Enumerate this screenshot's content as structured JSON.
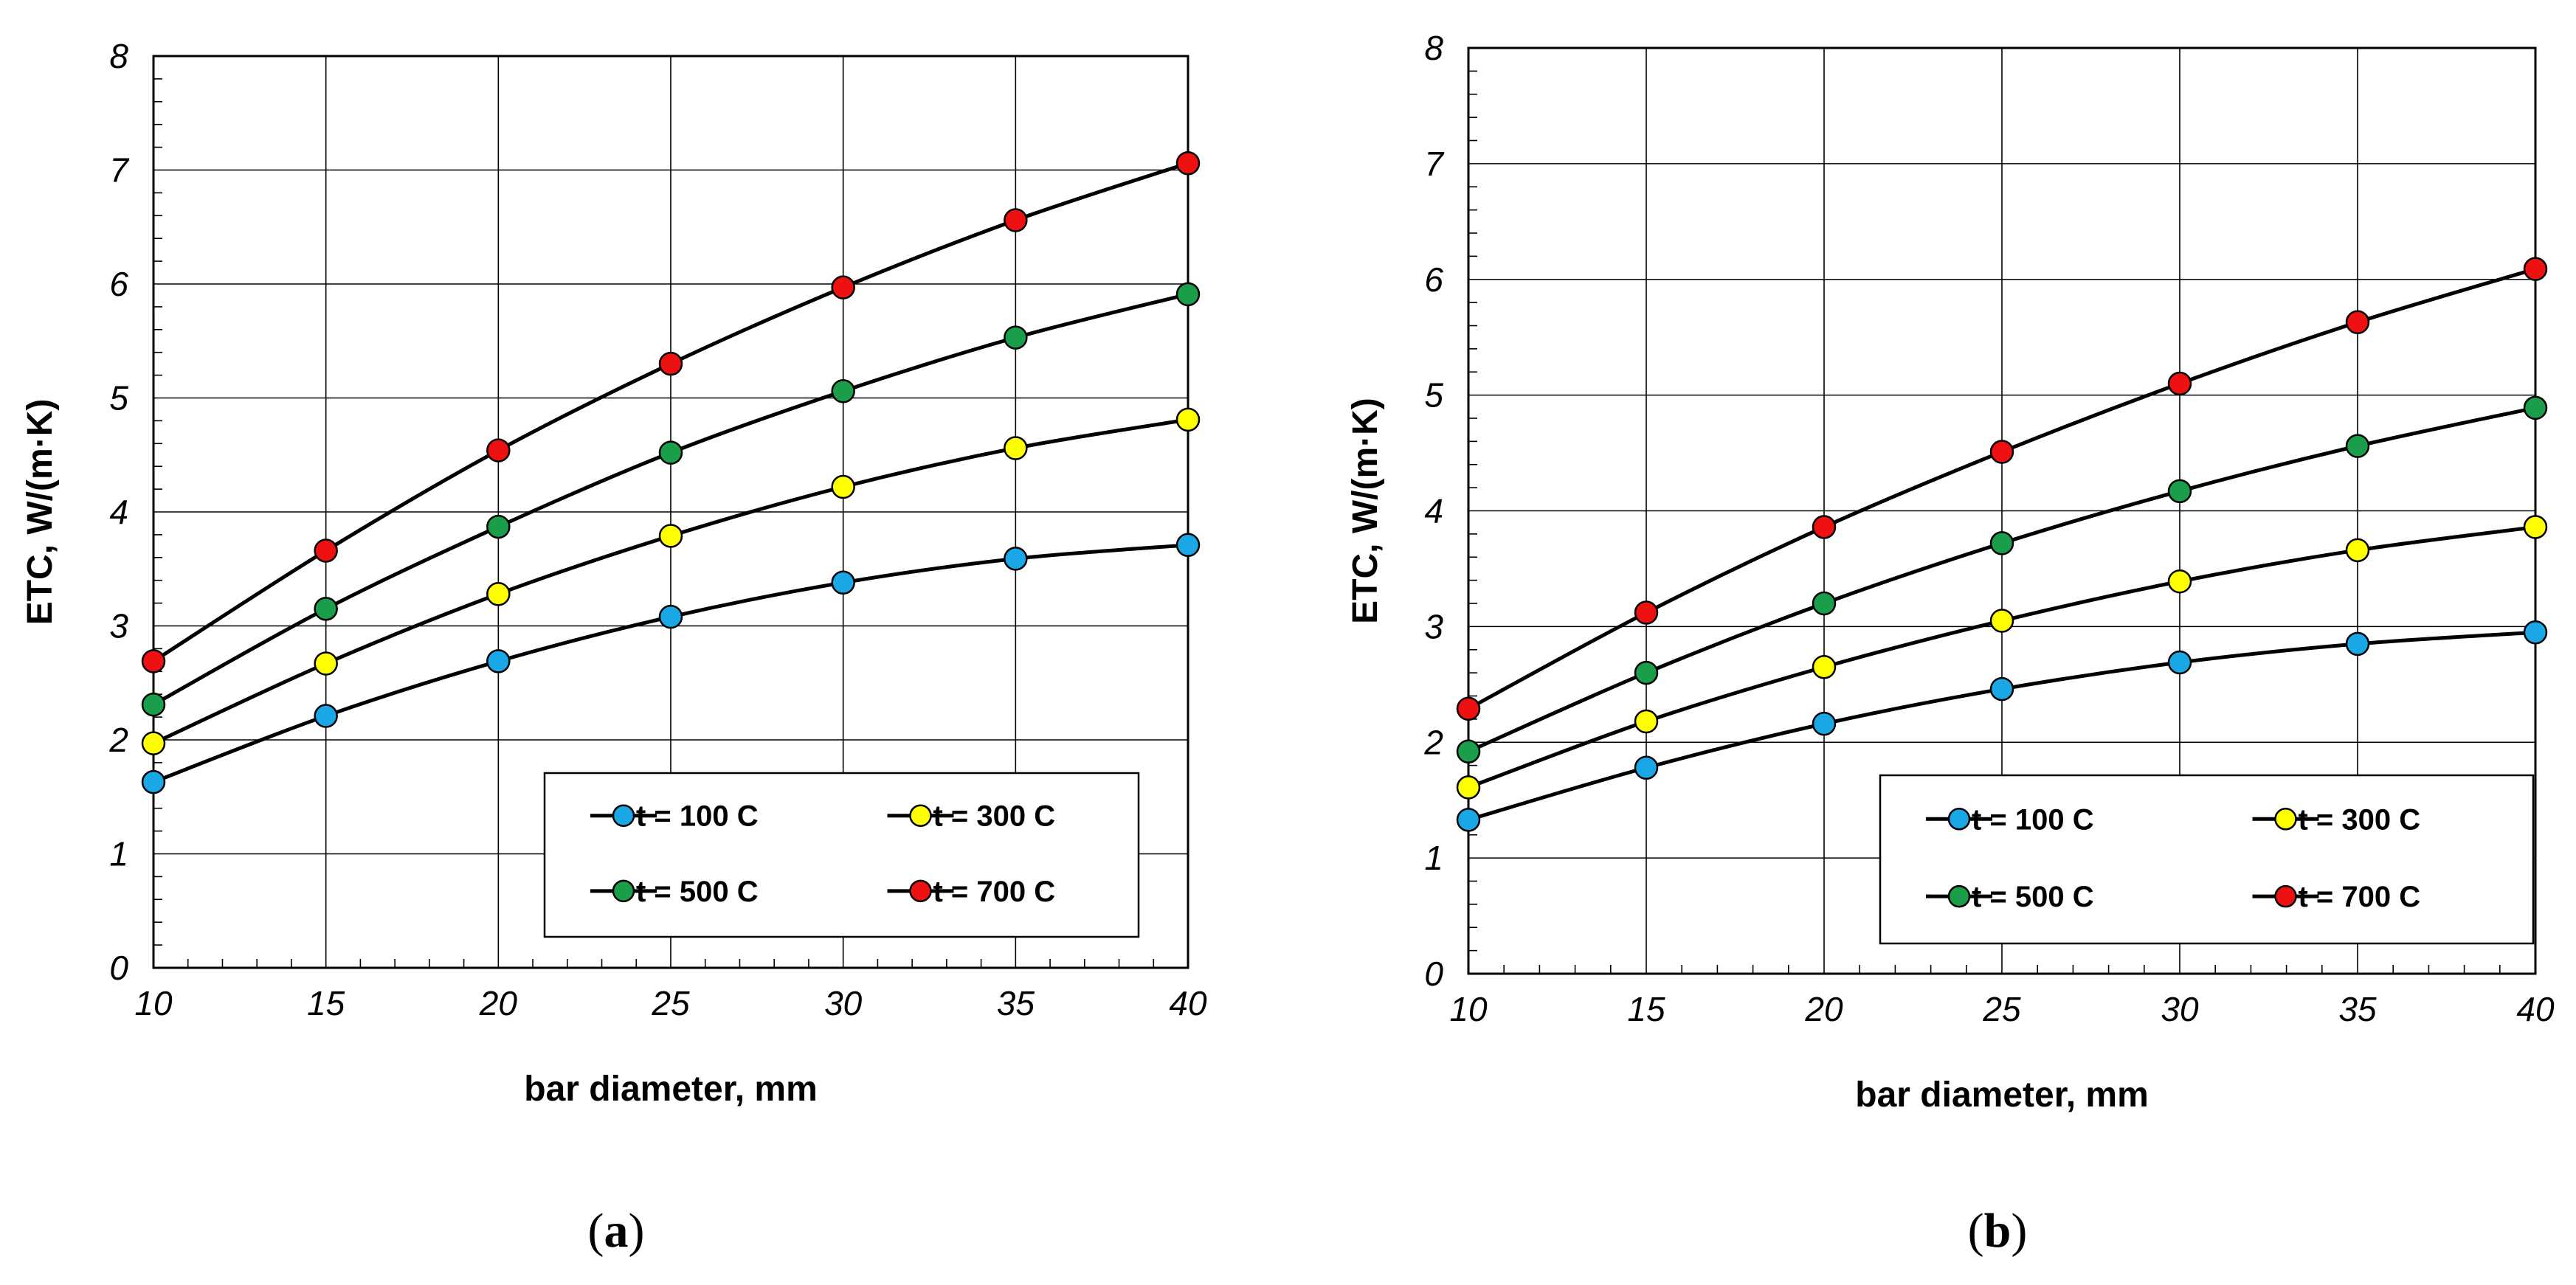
{
  "colors": {
    "t100": "#1aa7e6",
    "t300": "#ffff00",
    "t500": "#1a9e4a",
    "t700": "#ee1111"
  },
  "chart_data": [
    {
      "type": "line",
      "panel": "a",
      "caption_open": "(",
      "caption_letter": "a",
      "caption_close": ")",
      "x": [
        10,
        15,
        20,
        25,
        30,
        35,
        40
      ],
      "xlim": [
        10,
        40
      ],
      "ylim": [
        0,
        8
      ],
      "xticks": [
        "10",
        "15",
        "20",
        "25",
        "30",
        "35",
        "40"
      ],
      "yticks": [
        "0",
        "1",
        "2",
        "3",
        "4",
        "5",
        "6",
        "7",
        "8"
      ],
      "xlabel": "bar diameter, mm",
      "ylabel": "ETC,   W/(m·K)",
      "grid": true,
      "legend_position": "lower-right",
      "series": [
        {
          "name": "t = 100 C",
          "color_key": "t100",
          "values": [
            1.63,
            2.21,
            2.69,
            3.08,
            3.38,
            3.59,
            3.71
          ]
        },
        {
          "name": "t = 300 C",
          "color_key": "t300",
          "values": [
            1.97,
            2.67,
            3.28,
            3.79,
            4.22,
            4.56,
            4.81
          ]
        },
        {
          "name": "t = 500 C",
          "color_key": "t500",
          "values": [
            2.31,
            3.15,
            3.87,
            4.52,
            5.06,
            5.53,
            5.91
          ]
        },
        {
          "name": "t = 700 C",
          "color_key": "t700",
          "values": [
            2.69,
            3.66,
            4.54,
            5.3,
            5.97,
            6.56,
            7.06
          ]
        }
      ]
    },
    {
      "type": "line",
      "panel": "b",
      "caption_open": "(",
      "caption_letter": "b",
      "caption_close": ")",
      "x": [
        10,
        15,
        20,
        25,
        30,
        35,
        40
      ],
      "xlim": [
        10,
        40
      ],
      "ylim": [
        0,
        8
      ],
      "xticks": [
        "10",
        "15",
        "20",
        "25",
        "30",
        "35",
        "40"
      ],
      "yticks": [
        "0",
        "1",
        "2",
        "3",
        "4",
        "5",
        "6",
        "7",
        "8"
      ],
      "xlabel": "bar diameter, mm",
      "ylabel": "ETC,   W/(m·K)",
      "grid": true,
      "legend_position": "lower-right",
      "series": [
        {
          "name": "t = 100 C",
          "color_key": "t100",
          "values": [
            1.33,
            1.78,
            2.16,
            2.46,
            2.69,
            2.85,
            2.95
          ]
        },
        {
          "name": "t = 300 C",
          "color_key": "t300",
          "values": [
            1.61,
            2.18,
            2.65,
            3.05,
            3.39,
            3.66,
            3.86
          ]
        },
        {
          "name": "t = 500 C",
          "color_key": "t500",
          "values": [
            1.92,
            2.6,
            3.2,
            3.72,
            4.17,
            4.56,
            4.89
          ]
        },
        {
          "name": "t = 700 C",
          "color_key": "t700",
          "values": [
            2.29,
            3.12,
            3.86,
            4.51,
            5.1,
            5.63,
            6.09
          ]
        }
      ]
    }
  ]
}
